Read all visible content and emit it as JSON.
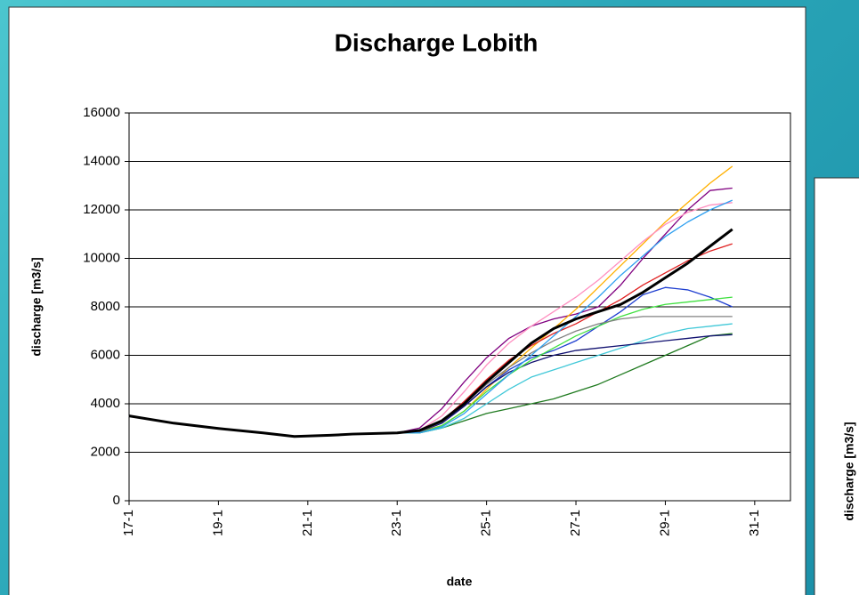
{
  "chart_data": {
    "type": "line",
    "title": "Discharge Lobith",
    "xlabel": "date",
    "ylabel": "discharge [m3/s]",
    "x": [
      17,
      18,
      19,
      20,
      20.7,
      21.5,
      22,
      23,
      23.5,
      24,
      24.5,
      25,
      25.5,
      26,
      26.5,
      27,
      27.5,
      28,
      28.5,
      29,
      29.5,
      30,
      30.5
    ],
    "xlim": [
      17,
      31.8
    ],
    "xticks": [
      {
        "value": 17,
        "label": "17-1"
      },
      {
        "value": 19,
        "label": "19-1"
      },
      {
        "value": 21,
        "label": "21-1"
      },
      {
        "value": 23,
        "label": "23-1"
      },
      {
        "value": 25,
        "label": "25-1"
      },
      {
        "value": 27,
        "label": "27-1"
      },
      {
        "value": 29,
        "label": "29-1"
      },
      {
        "value": 31,
        "label": "31-1"
      }
    ],
    "ylim": [
      0,
      16000
    ],
    "yticks": [
      0,
      2000,
      4000,
      6000,
      8000,
      10000,
      12000,
      14000,
      16000
    ],
    "grid": true,
    "series": [
      {
        "color": "#800080",
        "values": [
          3500,
          3200,
          2980,
          2800,
          2650,
          2700,
          2750,
          2800,
          3000,
          3800,
          4900,
          5900,
          6700,
          7200,
          7500,
          7700,
          8000,
          8900,
          10000,
          11000,
          12000,
          12800,
          12900
        ]
      },
      {
        "color": "#ffb000",
        "values": [
          3500,
          3200,
          2980,
          2800,
          2650,
          2700,
          2750,
          2800,
          2850,
          3100,
          3700,
          4600,
          5500,
          6300,
          7100,
          7900,
          8800,
          9700,
          10600,
          11500,
          12300,
          13100,
          13800
        ]
      },
      {
        "color": "#1f7a1f",
        "values": [
          3500,
          3200,
          2980,
          2800,
          2650,
          2700,
          2750,
          2800,
          2800,
          3000,
          3300,
          3600,
          3800,
          4000,
          4200,
          4500,
          4800,
          5200,
          5600,
          6000,
          6400,
          6800,
          6900
        ]
      },
      {
        "color": "#1f3fd0",
        "values": [
          3500,
          3200,
          2980,
          2800,
          2650,
          2700,
          2750,
          2800,
          2850,
          3200,
          3900,
          4700,
          5400,
          5900,
          6200,
          6600,
          7200,
          7800,
          8500,
          8800,
          8700,
          8400,
          8000
        ]
      },
      {
        "color": "#40c8d8",
        "values": [
          3500,
          3200,
          2980,
          2800,
          2650,
          2700,
          2750,
          2800,
          2800,
          3000,
          3400,
          4000,
          4600,
          5100,
          5400,
          5700,
          6000,
          6300,
          6600,
          6900,
          7100,
          7200,
          7300
        ]
      },
      {
        "color": "#ff8fc0",
        "values": [
          3500,
          3200,
          2980,
          2800,
          2650,
          2700,
          2750,
          2800,
          2900,
          3500,
          4500,
          5600,
          6500,
          7200,
          7800,
          8400,
          9100,
          9900,
          10700,
          11400,
          11900,
          12200,
          12300
        ]
      },
      {
        "color": "#e02020",
        "values": [
          3500,
          3200,
          2980,
          2800,
          2650,
          2700,
          2750,
          2800,
          2850,
          3300,
          4100,
          5000,
          5800,
          6400,
          6900,
          7300,
          7800,
          8300,
          8900,
          9400,
          9900,
          10300,
          10600
        ]
      },
      {
        "color": "#101070",
        "values": [
          3500,
          3200,
          2980,
          2800,
          2650,
          2700,
          2750,
          2800,
          2850,
          3200,
          3900,
          4700,
          5300,
          5700,
          6000,
          6200,
          6300,
          6400,
          6500,
          6600,
          6700,
          6800,
          6850
        ]
      },
      {
        "color": "#40e040",
        "values": [
          3500,
          3200,
          2980,
          2800,
          2650,
          2700,
          2750,
          2800,
          2800,
          3100,
          3700,
          4500,
          5200,
          5800,
          6300,
          6800,
          7200,
          7600,
          7900,
          8100,
          8200,
          8300,
          8400
        ]
      },
      {
        "color": "#808080",
        "values": [
          3500,
          3200,
          2980,
          2800,
          2650,
          2700,
          2750,
          2800,
          2850,
          3250,
          4000,
          4800,
          5500,
          6100,
          6600,
          7000,
          7300,
          7500,
          7600,
          7600,
          7600,
          7600,
          7600
        ]
      },
      {
        "color": "#30a0f0",
        "values": [
          3500,
          3200,
          2980,
          2800,
          2650,
          2700,
          2750,
          2800,
          2800,
          3050,
          3600,
          4400,
          5200,
          6000,
          6800,
          7600,
          8400,
          9300,
          10100,
          10900,
          11500,
          12000,
          12400
        ]
      },
      {
        "color": "#000000",
        "width": 3,
        "values": [
          3500,
          3200,
          2980,
          2800,
          2650,
          2700,
          2750,
          2800,
          2900,
          3300,
          4000,
          4900,
          5700,
          6500,
          7100,
          7500,
          7800,
          8100,
          8600,
          9200,
          9800,
          10500,
          11200
        ]
      }
    ]
  },
  "partial_chart": {
    "ylabel": "discharge [m3/s]"
  }
}
